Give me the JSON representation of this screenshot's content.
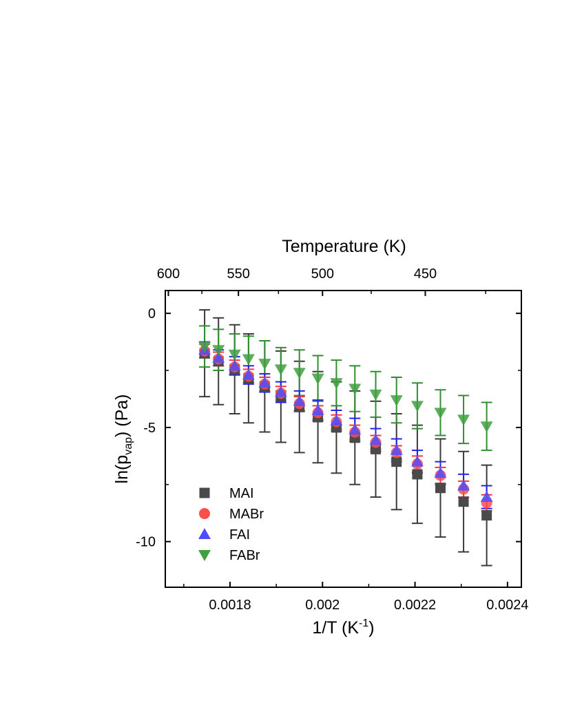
{
  "chart_data": {
    "type": "scatter",
    "xlabel": "1/T (K",
    "xlabel_sup": "-1",
    "xlabel_end": ")",
    "ylabel": "ln(p",
    "ylabel_sub": "vap",
    "ylabel_end": ") (Pa)",
    "top_axis_title": "Temperature (K)",
    "x_ticks": [
      0.0018,
      0.002,
      0.0022,
      0.0024
    ],
    "x_tick_labels": [
      "0.0018",
      "0.002",
      "0.0022",
      "0.0024"
    ],
    "y_ticks": [
      0,
      -5,
      -10
    ],
    "y_tick_labels": [
      "0",
      "-5",
      "-10"
    ],
    "top_ticks": [
      600,
      550,
      500,
      450
    ],
    "top_tick_labels": [
      "600",
      "550",
      "500",
      "450"
    ],
    "xlim": [
      0.00166,
      0.00243
    ],
    "ylim": [
      -12.0,
      1.0
    ],
    "legend_position": "bottom-left",
    "x": [
      0.001745,
      0.001775,
      0.00181,
      0.00184,
      0.001875,
      0.00191,
      0.00195,
      0.00199,
      0.00203,
      0.00207,
      0.002115,
      0.00216,
      0.002205,
      0.002255,
      0.002305,
      0.002355
    ],
    "series": [
      {
        "name": "MAI",
        "marker": "square",
        "color": "#4a4a4a",
        "error_color": "#3a3a3a",
        "values": [
          -1.75,
          -2.1,
          -2.45,
          -2.85,
          -3.2,
          -3.65,
          -4.1,
          -4.55,
          -5.0,
          -5.45,
          -5.95,
          -6.5,
          -7.05,
          -7.65,
          -8.25,
          -8.85
        ],
        "errors": [
          1.9,
          1.9,
          1.95,
          1.95,
          2.0,
          2.0,
          2.0,
          2.0,
          2.0,
          2.05,
          2.1,
          2.1,
          2.15,
          2.15,
          2.2,
          2.2
        ]
      },
      {
        "name": "MABr",
        "marker": "circle",
        "color": "#ff4d4d",
        "error_color": "#ff3333",
        "values": [
          -1.65,
          -2.0,
          -2.35,
          -2.75,
          -3.1,
          -3.5,
          -3.95,
          -4.35,
          -4.75,
          -5.2,
          -5.65,
          -6.1,
          -6.6,
          -7.1,
          -7.7,
          -8.3
        ],
        "errors": [
          0.3,
          0.3,
          0.3,
          0.3,
          0.3,
          0.3,
          0.3,
          0.3,
          0.3,
          0.3,
          0.3,
          0.3,
          0.35,
          0.35,
          0.35,
          0.35
        ]
      },
      {
        "name": "FAI",
        "marker": "triangle-up",
        "color": "#4d4dff",
        "error_color": "#2222ee",
        "values": [
          -1.6,
          -1.95,
          -2.3,
          -2.7,
          -3.05,
          -3.45,
          -3.85,
          -4.25,
          -4.7,
          -5.1,
          -5.55,
          -6.0,
          -6.5,
          -7.0,
          -7.55,
          -8.05
        ],
        "errors": [
          0.35,
          0.35,
          0.4,
          0.4,
          0.4,
          0.45,
          0.45,
          0.45,
          0.45,
          0.5,
          0.5,
          0.5,
          0.5,
          0.5,
          0.5,
          0.5
        ]
      },
      {
        "name": "FABr",
        "marker": "triangle-down",
        "color": "#3f9f3f",
        "error_color": "#2f8f2f",
        "values": [
          -1.45,
          -1.6,
          -1.8,
          -2.0,
          -2.2,
          -2.45,
          -2.6,
          -2.85,
          -3.05,
          -3.3,
          -3.55,
          -3.8,
          -4.05,
          -4.35,
          -4.65,
          -4.95
        ],
        "errors": [
          0.9,
          0.9,
          0.9,
          1.0,
          1.0,
          0.95,
          1.0,
          1.0,
          1.0,
          1.0,
          1.0,
          1.0,
          1.0,
          1.0,
          1.05,
          1.05
        ]
      }
    ]
  }
}
